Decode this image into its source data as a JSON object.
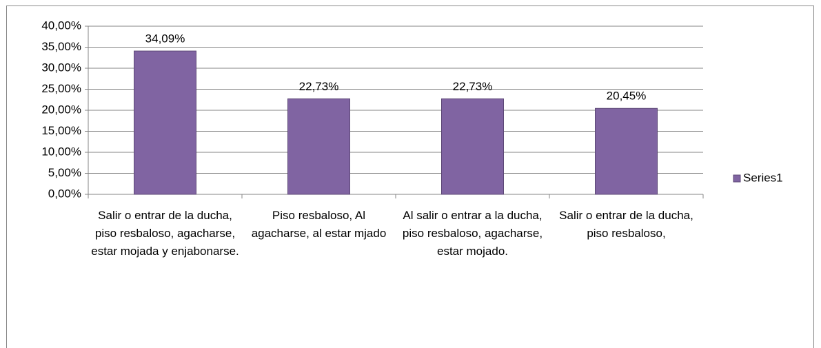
{
  "chart_data": {
    "type": "bar",
    "categories": [
      "Salir o entrar de la ducha, piso resbaloso, agacharse, estar mojada y enjabonarse.",
      "Piso resbaloso, Al agacharse, al estar mjado",
      "Al salir o entrar a la ducha, piso resbaloso, agacharse, estar mojado.",
      "Salir o entrar de la ducha, piso resbaloso,"
    ],
    "series": [
      {
        "name": "Series1",
        "color": "#8064a2",
        "values": [
          34.09,
          22.73,
          22.73,
          20.45
        ],
        "value_labels": [
          "34,09%",
          "22,73%",
          "22,73%",
          "20,45%"
        ]
      }
    ],
    "ylim": [
      0,
      40
    ],
    "yticks": [
      {
        "value": 0,
        "label": "0,00%"
      },
      {
        "value": 5,
        "label": "5,00%"
      },
      {
        "value": 10,
        "label": "10,00%"
      },
      {
        "value": 15,
        "label": "15,00%"
      },
      {
        "value": 20,
        "label": "20,00%"
      },
      {
        "value": 25,
        "label": "25,00%"
      },
      {
        "value": 30,
        "label": "30,00%"
      },
      {
        "value": 35,
        "label": "35,00%"
      },
      {
        "value": 40,
        "label": "40,00%"
      }
    ],
    "grid": true,
    "legend": "right"
  }
}
